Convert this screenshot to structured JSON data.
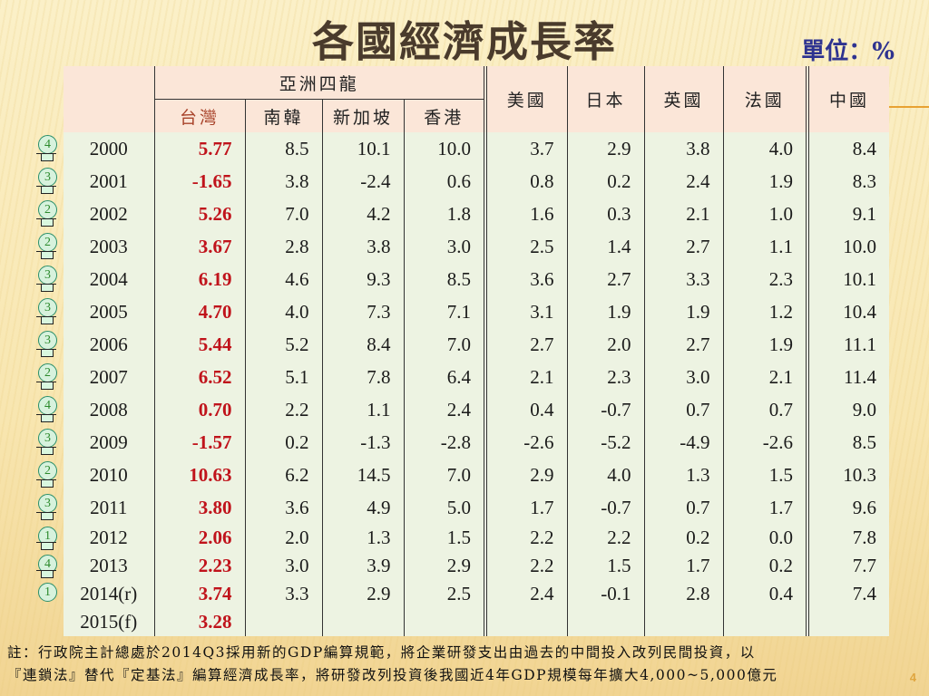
{
  "title": "各國經濟成長率",
  "unit_label": "單位：%",
  "table": {
    "group_header": "亞洲四龍",
    "columns": [
      "台灣",
      "南韓",
      "新加坡",
      "香港",
      "美國",
      "日本",
      "英國",
      "法國",
      "中國"
    ],
    "rows": [
      {
        "year": "2000",
        "rank": "4",
        "values": [
          "5.77",
          "8.5",
          "10.1",
          "10.0",
          "3.7",
          "2.9",
          "3.8",
          "4.0",
          "8.4"
        ]
      },
      {
        "year": "2001",
        "rank": "3",
        "values": [
          "-1.65",
          "3.8",
          "-2.4",
          "0.6",
          "0.8",
          "0.2",
          "2.4",
          "1.9",
          "8.3"
        ]
      },
      {
        "year": "2002",
        "rank": "2",
        "values": [
          "5.26",
          "7.0",
          "4.2",
          "1.8",
          "1.6",
          "0.3",
          "2.1",
          "1.0",
          "9.1"
        ]
      },
      {
        "year": "2003",
        "rank": "2",
        "values": [
          "3.67",
          "2.8",
          "3.8",
          "3.0",
          "2.5",
          "1.4",
          "2.7",
          "1.1",
          "10.0"
        ]
      },
      {
        "year": "2004",
        "rank": "3",
        "values": [
          "6.19",
          "4.6",
          "9.3",
          "8.5",
          "3.6",
          "2.7",
          "3.3",
          "2.3",
          "10.1"
        ]
      },
      {
        "year": "2005",
        "rank": "3",
        "values": [
          "4.70",
          "4.0",
          "7.3",
          "7.1",
          "3.1",
          "1.9",
          "1.9",
          "1.2",
          "10.4"
        ]
      },
      {
        "year": "2006",
        "rank": "3",
        "values": [
          "5.44",
          "5.2",
          "8.4",
          "7.0",
          "2.7",
          "2.0",
          "2.7",
          "1.9",
          "11.1"
        ]
      },
      {
        "year": "2007",
        "rank": "2",
        "values": [
          "6.52",
          "5.1",
          "7.8",
          "6.4",
          "2.1",
          "2.3",
          "3.0",
          "2.1",
          "11.4"
        ]
      },
      {
        "year": "2008",
        "rank": "4",
        "values": [
          "0.70",
          "2.2",
          "1.1",
          "2.4",
          "0.4",
          "-0.7",
          "0.7",
          "0.7",
          "9.0"
        ]
      },
      {
        "year": "2009",
        "rank": "3",
        "values": [
          "-1.57",
          "0.2",
          "-1.3",
          "-2.8",
          "-2.6",
          "-5.2",
          "-4.9",
          "-2.6",
          "8.5"
        ]
      },
      {
        "year": "2010",
        "rank": "2",
        "values": [
          "10.63",
          "6.2",
          "14.5",
          "7.0",
          "2.9",
          "4.0",
          "1.3",
          "1.5",
          "10.3"
        ]
      },
      {
        "year": "2011",
        "rank": "3",
        "values": [
          "3.80",
          "3.6",
          "4.9",
          "5.0",
          "1.7",
          "-0.7",
          "0.7",
          "1.7",
          "9.6"
        ]
      },
      {
        "year": "2012",
        "rank": "1",
        "values": [
          "2.06",
          "2.0",
          "1.3",
          "1.5",
          "2.2",
          "2.2",
          "0.2",
          "0.0",
          "7.8"
        ]
      },
      {
        "year": "2013",
        "rank": "4",
        "values": [
          "2.23",
          "3.0",
          "3.9",
          "2.9",
          "2.2",
          "1.5",
          "1.7",
          "0.2",
          "7.7"
        ]
      },
      {
        "year": "2014(r)",
        "rank": "1",
        "values": [
          "3.74",
          "3.3",
          "2.9",
          "2.5",
          "2.4",
          "-0.1",
          "2.8",
          "0.4",
          "7.4"
        ]
      },
      {
        "year": "2015(f)",
        "rank": "",
        "values": [
          "3.28",
          "",
          "",
          "",
          "",
          "",
          "",
          "",
          ""
        ]
      }
    ]
  },
  "note": {
    "line1": "註：行政院主計總處於2014Q3採用新的GDP編算規範，將企業研發支出由過去的中間投入改列民間投資，以",
    "line2": "『連鎖法』替代『定基法』編算經濟成長率，將研發改列投資後我國近4年GDP規模每年擴大4,000~5,000億元"
  },
  "page_number": "4",
  "colors": {
    "title": "#4a3b2c",
    "unit": "#2e3390",
    "taiwan_values": "#c0131b",
    "taiwan_header": "#a8432a",
    "header_bg": "#fbe6d8",
    "body_bg": "#edf3e2",
    "rank_circle": "#2a8f6a"
  }
}
